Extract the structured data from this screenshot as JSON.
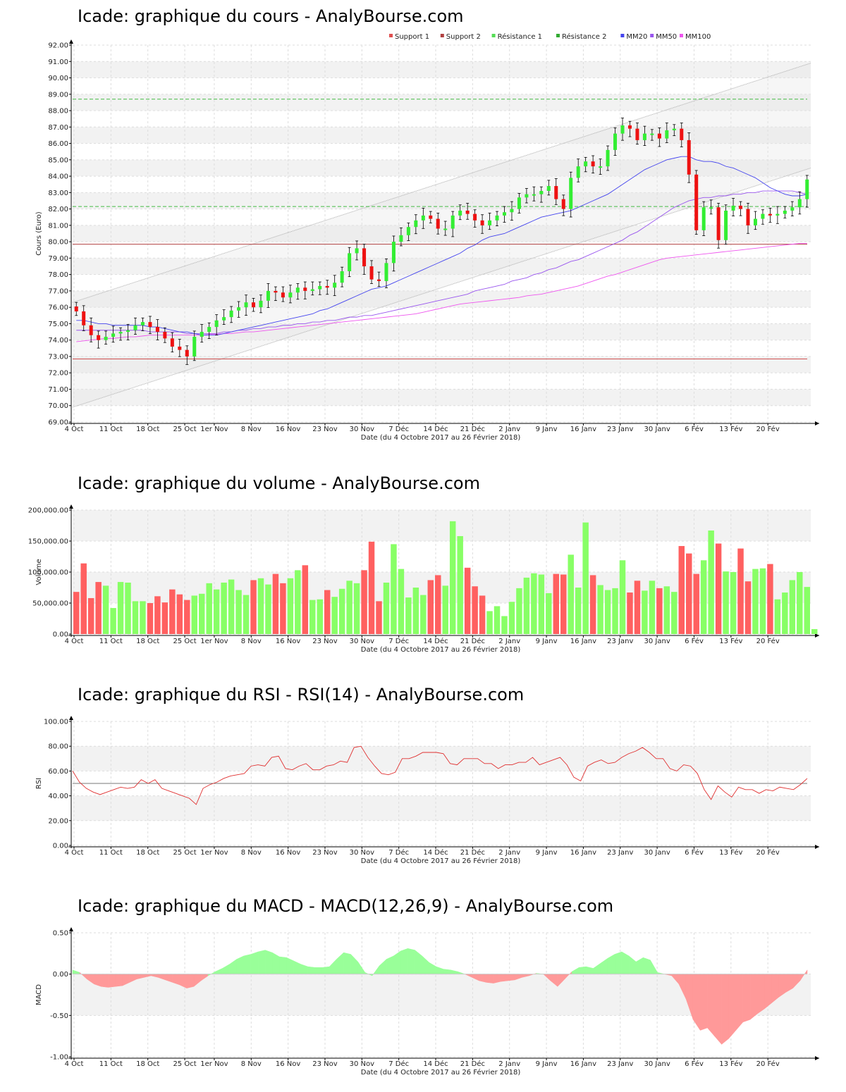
{
  "chart_data": [
    {
      "type": "candlestick",
      "title": "Icade: graphique du cours - AnalyBourse.com",
      "ylabel": "Cours (Euro)",
      "xlabel": "Date (du 4 Octobre 2017 au 26 Février 2018)",
      "ylim": [
        69,
        92
      ],
      "y_ticks": [
        "69.00",
        "70.00",
        "71.00",
        "72.00",
        "73.00",
        "74.00",
        "75.00",
        "76.00",
        "77.00",
        "78.00",
        "79.00",
        "80.00",
        "81.00",
        "82.00",
        "83.00",
        "84.00",
        "85.00",
        "86.00",
        "87.00",
        "88.00",
        "89.00",
        "90.00",
        "91.00",
        "92.00"
      ],
      "x_tick_labels": [
        "4 Oct",
        "11 Oct",
        "18 Oct",
        "25 Oct",
        "1er Nov",
        "8 Nov",
        "16 Nov",
        "23 Nov",
        "30 Nov",
        "7 Déc",
        "14 Déc",
        "21 Déc",
        "2 Janv",
        "9 Janv",
        "16 Janv",
        "23 Janv",
        "30 Janv",
        "6 Fév",
        "13 Fév",
        "20 Fév"
      ],
      "legend": [
        "Support 1",
        "Support 2",
        "Résistance 1",
        "Résistance 2",
        "MM20",
        "MM50",
        "MM100"
      ],
      "legend_colors": [
        "#e05050",
        "#b04040",
        "#55dd55",
        "#33aa33",
        "#4444ee",
        "#9955ee",
        "#ee55ee"
      ],
      "levels": {
        "support_1": 72.85,
        "support_2": 79.85,
        "resistance_1": 82.15,
        "resistance_2": 88.7
      },
      "channel": {
        "upper": [
          76.3,
          90.9
        ],
        "lower": [
          69.9,
          84.5
        ]
      },
      "close": [
        75.75,
        74.9,
        74.3,
        74.0,
        74.2,
        74.4,
        74.5,
        74.6,
        74.9,
        75.1,
        74.8,
        74.5,
        74.1,
        73.6,
        73.4,
        73.0,
        74.2,
        74.5,
        74.8,
        75.2,
        75.4,
        75.8,
        76.0,
        76.3,
        76.0,
        76.4,
        77.0,
        76.9,
        76.6,
        76.9,
        77.2,
        77.0,
        77.1,
        77.3,
        77.2,
        77.5,
        78.2,
        79.3,
        79.6,
        78.5,
        77.7,
        77.6,
        78.7,
        80.0,
        80.4,
        80.9,
        81.3,
        81.6,
        81.4,
        80.8,
        80.8,
        81.6,
        81.9,
        81.7,
        81.3,
        81.0,
        81.3,
        81.6,
        81.8,
        82.0,
        82.7,
        82.9,
        82.9,
        83.1,
        83.4,
        82.6,
        82.0,
        83.9,
        84.6,
        84.9,
        84.6,
        84.6,
        85.6,
        86.6,
        87.1,
        86.9,
        86.2,
        86.6,
        86.6,
        86.3,
        86.8,
        86.9,
        86.2,
        84.1,
        80.7,
        82.1,
        82.1,
        80.1,
        81.9,
        82.2,
        82.0,
        81.0,
        81.4,
        81.7,
        81.6,
        81.7,
        81.9,
        82.1,
        82.6,
        83.8
      ],
      "mm20": [
        75.2,
        75.2,
        75.1,
        75.0,
        75.0,
        74.9,
        74.9,
        74.9,
        74.9,
        74.9,
        74.8,
        74.8,
        74.7,
        74.6,
        74.5,
        74.5,
        74.4,
        74.3,
        74.3,
        74.3,
        74.4,
        74.5,
        74.6,
        74.7,
        74.8,
        74.9,
        75.0,
        75.1,
        75.2,
        75.3,
        75.4,
        75.5,
        75.6,
        75.8,
        75.9,
        76.1,
        76.3,
        76.5,
        76.7,
        76.9,
        77.1,
        77.2,
        77.3,
        77.5,
        77.7,
        77.9,
        78.1,
        78.3,
        78.5,
        78.7,
        78.9,
        79.1,
        79.3,
        79.6,
        79.8,
        80.1,
        80.3,
        80.4,
        80.5,
        80.7,
        80.9,
        81.1,
        81.3,
        81.5,
        81.6,
        81.7,
        81.8,
        81.9,
        82.1,
        82.3,
        82.5,
        82.7,
        82.9,
        83.2,
        83.5,
        83.8,
        84.1,
        84.4,
        84.6,
        84.8,
        85.0,
        85.1,
        85.2,
        85.2,
        85.0,
        84.9,
        84.9,
        84.8,
        84.6,
        84.5,
        84.3,
        84.1,
        83.9,
        83.6,
        83.3,
        83.1,
        82.9,
        82.8,
        82.8,
        82.9
      ],
      "mm50": [
        74.6,
        74.6,
        74.6,
        74.6,
        74.6,
        74.6,
        74.6,
        74.6,
        74.6,
        74.6,
        74.5,
        74.5,
        74.5,
        74.5,
        74.5,
        74.4,
        74.4,
        74.4,
        74.4,
        74.4,
        74.5,
        74.5,
        74.6,
        74.6,
        74.7,
        74.7,
        74.8,
        74.8,
        74.9,
        74.9,
        75.0,
        75.0,
        75.1,
        75.1,
        75.2,
        75.2,
        75.3,
        75.4,
        75.4,
        75.5,
        75.5,
        75.6,
        75.7,
        75.8,
        75.9,
        76.0,
        76.1,
        76.2,
        76.3,
        76.4,
        76.5,
        76.6,
        76.7,
        76.8,
        77.0,
        77.1,
        77.2,
        77.3,
        77.4,
        77.6,
        77.7,
        77.8,
        78.0,
        78.1,
        78.3,
        78.4,
        78.6,
        78.8,
        78.9,
        79.1,
        79.3,
        79.5,
        79.7,
        79.9,
        80.1,
        80.4,
        80.6,
        80.9,
        81.2,
        81.5,
        81.8,
        82.1,
        82.3,
        82.5,
        82.6,
        82.7,
        82.7,
        82.8,
        82.8,
        82.9,
        82.9,
        83.0,
        83.0,
        83.1,
        83.1,
        83.1,
        83.1,
        83.1,
        83.0,
        82.9
      ],
      "mm100": [
        73.9,
        73.95,
        74.0,
        74.05,
        74.1,
        74.1,
        74.15,
        74.2,
        74.2,
        74.25,
        74.3,
        74.3,
        74.3,
        74.3,
        74.3,
        74.3,
        74.3,
        74.3,
        74.35,
        74.35,
        74.4,
        74.4,
        74.45,
        74.5,
        74.5,
        74.55,
        74.6,
        74.65,
        74.7,
        74.75,
        74.8,
        74.85,
        74.9,
        74.95,
        75.0,
        75.05,
        75.1,
        75.15,
        75.2,
        75.25,
        75.3,
        75.35,
        75.4,
        75.45,
        75.5,
        75.55,
        75.6,
        75.7,
        75.8,
        75.9,
        76.0,
        76.1,
        76.2,
        76.25,
        76.3,
        76.35,
        76.4,
        76.45,
        76.5,
        76.55,
        76.6,
        76.7,
        76.75,
        76.8,
        76.9,
        77.0,
        77.1,
        77.2,
        77.3,
        77.45,
        77.6,
        77.75,
        77.9,
        78.0,
        78.15,
        78.3,
        78.45,
        78.6,
        78.75,
        78.9,
        79.0,
        79.05,
        79.1,
        79.15,
        79.2,
        79.25,
        79.3,
        79.35,
        79.4,
        79.45,
        79.5,
        79.55,
        79.6,
        79.65,
        79.7,
        79.75,
        79.8,
        79.85,
        79.9,
        79.9
      ]
    },
    {
      "type": "bar",
      "title": "Icade: graphique du volume - AnalyBourse.com",
      "ylabel": "Volume",
      "xlabel": "Date (du 4 Octobre 2017 au 26 Février 2018)",
      "ylim": [
        0,
        200000
      ],
      "y_ticks": [
        "0.00",
        "50,000.00",
        "100,000.00",
        "150,000.00",
        "200,000.00"
      ],
      "x_tick_labels": [
        "4 Oct",
        "11 Oct",
        "18 Oct",
        "25 Oct",
        "1er Nov",
        "8 Nov",
        "16 Nov",
        "23 Nov",
        "30 Nov",
        "7 Déc",
        "14 Déc",
        "21 Déc",
        "2 Janv",
        "9 Janv",
        "16 Janv",
        "23 Janv",
        "30 Janv",
        "6 Fév",
        "13 Fév",
        "20 Fév"
      ],
      "up_color": "#88ff66",
      "down_color": "#ff6060",
      "values": [
        68000,
        114000,
        58000,
        84000,
        78000,
        42000,
        84000,
        83000,
        53000,
        53000,
        50000,
        61000,
        51000,
        72000,
        64000,
        55000,
        62000,
        65000,
        82000,
        72000,
        83000,
        88000,
        71000,
        63000,
        87000,
        90000,
        80000,
        97000,
        82000,
        90000,
        103000,
        111000,
        55000,
        56000,
        71000,
        60000,
        73000,
        86000,
        82000,
        103000,
        149000,
        53000,
        83000,
        145000,
        105000,
        59000,
        75000,
        63000,
        87000,
        95000,
        78000,
        182000,
        158000,
        107000,
        77000,
        62000,
        37000,
        45000,
        29000,
        52000,
        74000,
        91000,
        98000,
        96000,
        66000,
        97000,
        96000,
        128000,
        75000,
        180000,
        95000,
        79000,
        71000,
        74000,
        119000,
        67000,
        86000,
        70000,
        86000,
        74000,
        77000,
        68000,
        142000,
        130000,
        97000,
        119000,
        167000,
        146000,
        101000,
        100000,
        138000,
        85000,
        105000,
        106000,
        113000,
        56000,
        67000,
        87000,
        100000,
        76000,
        8000
      ]
    },
    {
      "type": "line",
      "title": "Icade: graphique du RSI - RSI(14) - AnalyBourse.com",
      "ylabel": "RSI",
      "xlabel": "Date (du 4 Octobre 2017 au 26 Février 2018)",
      "ylim": [
        0,
        100
      ],
      "y_ticks": [
        "0.00",
        "20.00",
        "40.00",
        "60.00",
        "80.00",
        "100.00"
      ],
      "reference_line": 50,
      "x_tick_labels": [
        "4 Oct",
        "11 Oct",
        "18 Oct",
        "25 Oct",
        "1er Nov",
        "8 Nov",
        "16 Nov",
        "23 Nov",
        "30 Nov",
        "7 Déc",
        "14 Déc",
        "21 Déc",
        "2 Janv",
        "9 Janv",
        "16 Janv",
        "23 Janv",
        "30 Janv",
        "6 Fév",
        "13 Fév",
        "20 Fév"
      ],
      "values": [
        60,
        51,
        46,
        43,
        41,
        43,
        45,
        47,
        46,
        47,
        53,
        50,
        53,
        46,
        44,
        42,
        40,
        38,
        33,
        46,
        49,
        51,
        54,
        56,
        57,
        58,
        64,
        65,
        64,
        71,
        72,
        62,
        61,
        64,
        66,
        61,
        61,
        64,
        65,
        68,
        67,
        79,
        80,
        71,
        64,
        58,
        57,
        59,
        70,
        70,
        72,
        75,
        75,
        75,
        74,
        66,
        65,
        70,
        70,
        70,
        66,
        66,
        62,
        65,
        65,
        67,
        67,
        71,
        65,
        67,
        69,
        71,
        65,
        55,
        52,
        64,
        67,
        69,
        66,
        67,
        71,
        74,
        76,
        79,
        75,
        70,
        70,
        62,
        60,
        65,
        64,
        58,
        45,
        37,
        48,
        43,
        39,
        47,
        45,
        45,
        42,
        45,
        44,
        47,
        46,
        45,
        49,
        54
      ]
    },
    {
      "type": "area",
      "title": "Icade: graphique du MACD - MACD(12,26,9) - AnalyBourse.com",
      "ylabel": "MACD",
      "xlabel": "Date (du 4 Octobre 2017 au 26 Février 2018)",
      "ylim": [
        -1.0,
        0.5
      ],
      "y_ticks": [
        "-1.00",
        "-0.50",
        "0.00",
        "0.50"
      ],
      "positive_color": "#99ff99",
      "negative_color": "#ff9999",
      "x_tick_labels": [
        "4 Oct",
        "11 Oct",
        "18 Oct",
        "25 Oct",
        "1er Nov",
        "8 Nov",
        "16 Nov",
        "23 Nov",
        "30 Nov",
        "7 Déc",
        "14 Déc",
        "21 Déc",
        "2 Janv",
        "9 Janv",
        "16 Janv",
        "23 Janv",
        "30 Janv",
        "6 Fév",
        "13 Fév",
        "20 Fév"
      ],
      "values": [
        0.05,
        0.02,
        -0.06,
        -0.12,
        -0.15,
        -0.16,
        -0.15,
        -0.14,
        -0.1,
        -0.06,
        -0.04,
        -0.02,
        -0.04,
        -0.07,
        -0.1,
        -0.13,
        -0.17,
        -0.15,
        -0.08,
        -0.02,
        0.03,
        0.07,
        0.12,
        0.18,
        0.22,
        0.24,
        0.27,
        0.29,
        0.26,
        0.21,
        0.2,
        0.16,
        0.12,
        0.09,
        0.08,
        0.08,
        0.09,
        0.18,
        0.26,
        0.24,
        0.15,
        0.02,
        -0.02,
        0.1,
        0.18,
        0.22,
        0.28,
        0.31,
        0.29,
        0.22,
        0.14,
        0.09,
        0.06,
        0.05,
        0.03,
        0.0,
        -0.04,
        -0.08,
        -0.1,
        -0.11,
        -0.09,
        -0.08,
        -0.07,
        -0.04,
        -0.02,
        0.01,
        0.0,
        -0.08,
        -0.15,
        -0.06,
        0.03,
        0.08,
        0.09,
        0.07,
        0.13,
        0.19,
        0.24,
        0.27,
        0.22,
        0.15,
        0.2,
        0.17,
        0.02,
        0.0,
        -0.02,
        -0.12,
        -0.3,
        -0.55,
        -0.68,
        -0.65,
        -0.75,
        -0.85,
        -0.78,
        -0.68,
        -0.58,
        -0.55,
        -0.48,
        -0.42,
        -0.35,
        -0.28,
        -0.22,
        -0.17,
        -0.08,
        0.05
      ]
    }
  ]
}
